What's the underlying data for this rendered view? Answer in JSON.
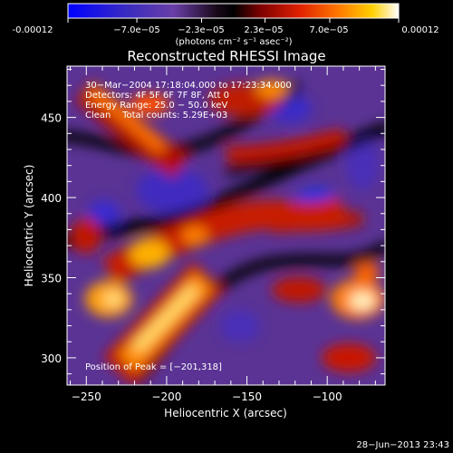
{
  "colorbar": {
    "tick_labels": [
      "-0.00012",
      "−7.0e−05",
      "−2.3e−05",
      "2.3e−05",
      "7.0e−05",
      "0.00012"
    ],
    "range": [
      -0.00012,
      0.00012
    ],
    "unit_label": "(photons cm⁻² s⁻¹ asec⁻²)"
  },
  "chart_data": {
    "type": "heatmap",
    "title": "Reconstructed RHESSI Image",
    "xlabel": "Heliocentric X (arcsec)",
    "ylabel": "Heliocentric Y (arcsec)",
    "xlim": [
      -262,
      -64
    ],
    "ylim": [
      283,
      482
    ],
    "x_ticks": [
      -250,
      -200,
      -150,
      -100
    ],
    "y_ticks": [
      300,
      350,
      400,
      450
    ],
    "colormap": [
      "#0000ff",
      "#4a2fb0",
      "#6a3ea8",
      "#000000",
      "#8a0000",
      "#e02000",
      "#ff6a00",
      "#ffc000",
      "#ffffff"
    ],
    "info_lines": [
      "30−Mar−2004 17:18:04.000 to 17:23:34.000",
      "Detectors: 4F 5F 6F 7F 8F, Att 0",
      "Energy Range: 25.0 − 50.0 keV",
      "Clean    Total counts: 5.29E+03"
    ],
    "peak_label": "Position of Peak = [−201,318]",
    "peak": [
      -201,
      318
    ]
  },
  "footer": {
    "timestamp": "28−Jun−2013 23:43"
  }
}
